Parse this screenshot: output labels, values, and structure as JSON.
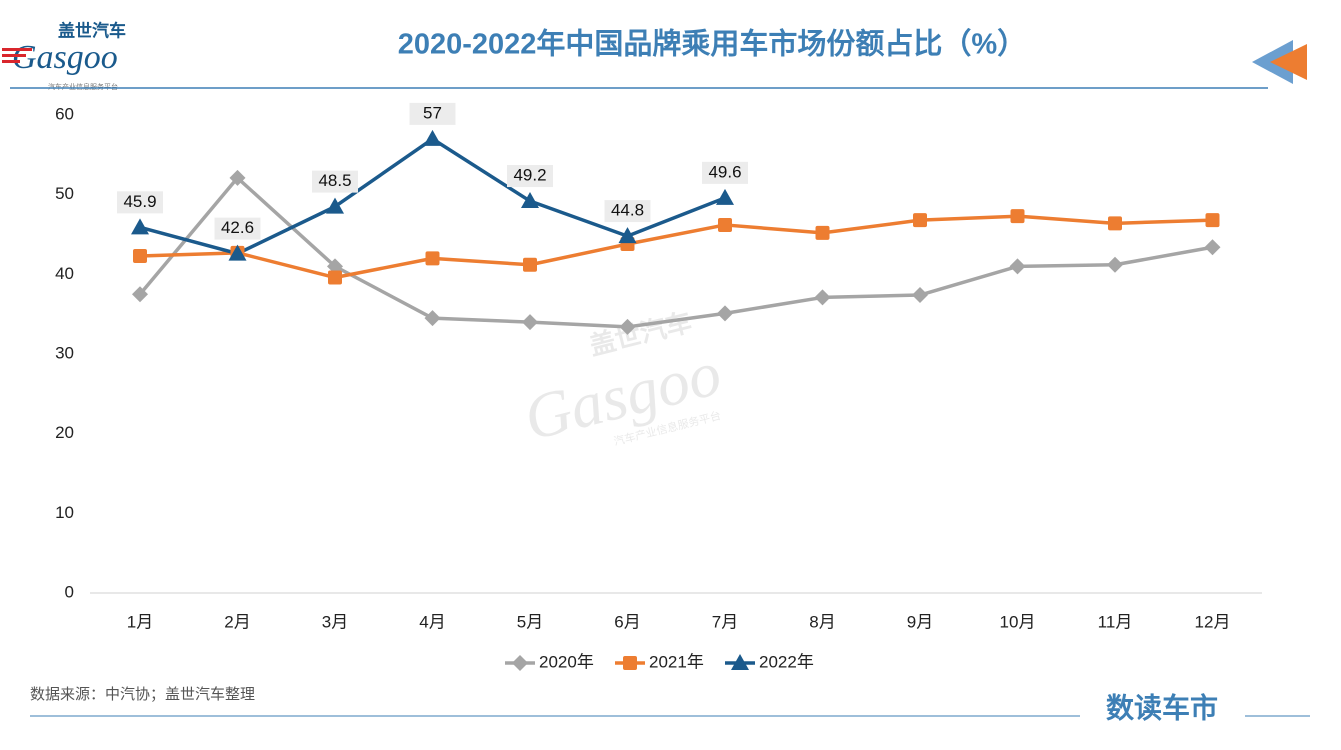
{
  "chart_data": {
    "type": "line",
    "title": "2020-2022年中国品牌乘用车市场份额占比（%）",
    "brand": {
      "name": "盖世汽车",
      "wordmark": "Gasgoo",
      "tagline": "汽车产业信息服务平台"
    },
    "source": "数据来源：中汽协；盖世汽车整理",
    "footer_brand": "数读车市",
    "categories": [
      "1月",
      "2月",
      "3月",
      "4月",
      "5月",
      "6月",
      "7月",
      "8月",
      "9月",
      "10月",
      "11月",
      "12月"
    ],
    "series": [
      {
        "name": "2020年",
        "color": "#a5a5a5",
        "marker": "diamond",
        "values": [
          37.5,
          52.1,
          41.0,
          34.5,
          34.0,
          33.4,
          35.1,
          37.1,
          37.4,
          41.0,
          41.2,
          43.4
        ]
      },
      {
        "name": "2021年",
        "color": "#ed7d31",
        "marker": "square",
        "values": [
          42.3,
          42.7,
          39.6,
          42.0,
          41.2,
          43.8,
          46.2,
          45.2,
          46.8,
          47.3,
          46.4,
          46.8
        ]
      },
      {
        "name": "2022年",
        "color": "#1b5a8c",
        "marker": "triangle",
        "data_labels": true,
        "values": [
          45.9,
          42.6,
          48.5,
          57,
          49.2,
          44.8,
          49.6,
          null,
          null,
          null,
          null,
          null
        ]
      }
    ],
    "ylim": [
      0,
      60
    ],
    "yticks": [
      0,
      10,
      20,
      30,
      40,
      50,
      60
    ],
    "grid": false,
    "legend": "bottom"
  }
}
